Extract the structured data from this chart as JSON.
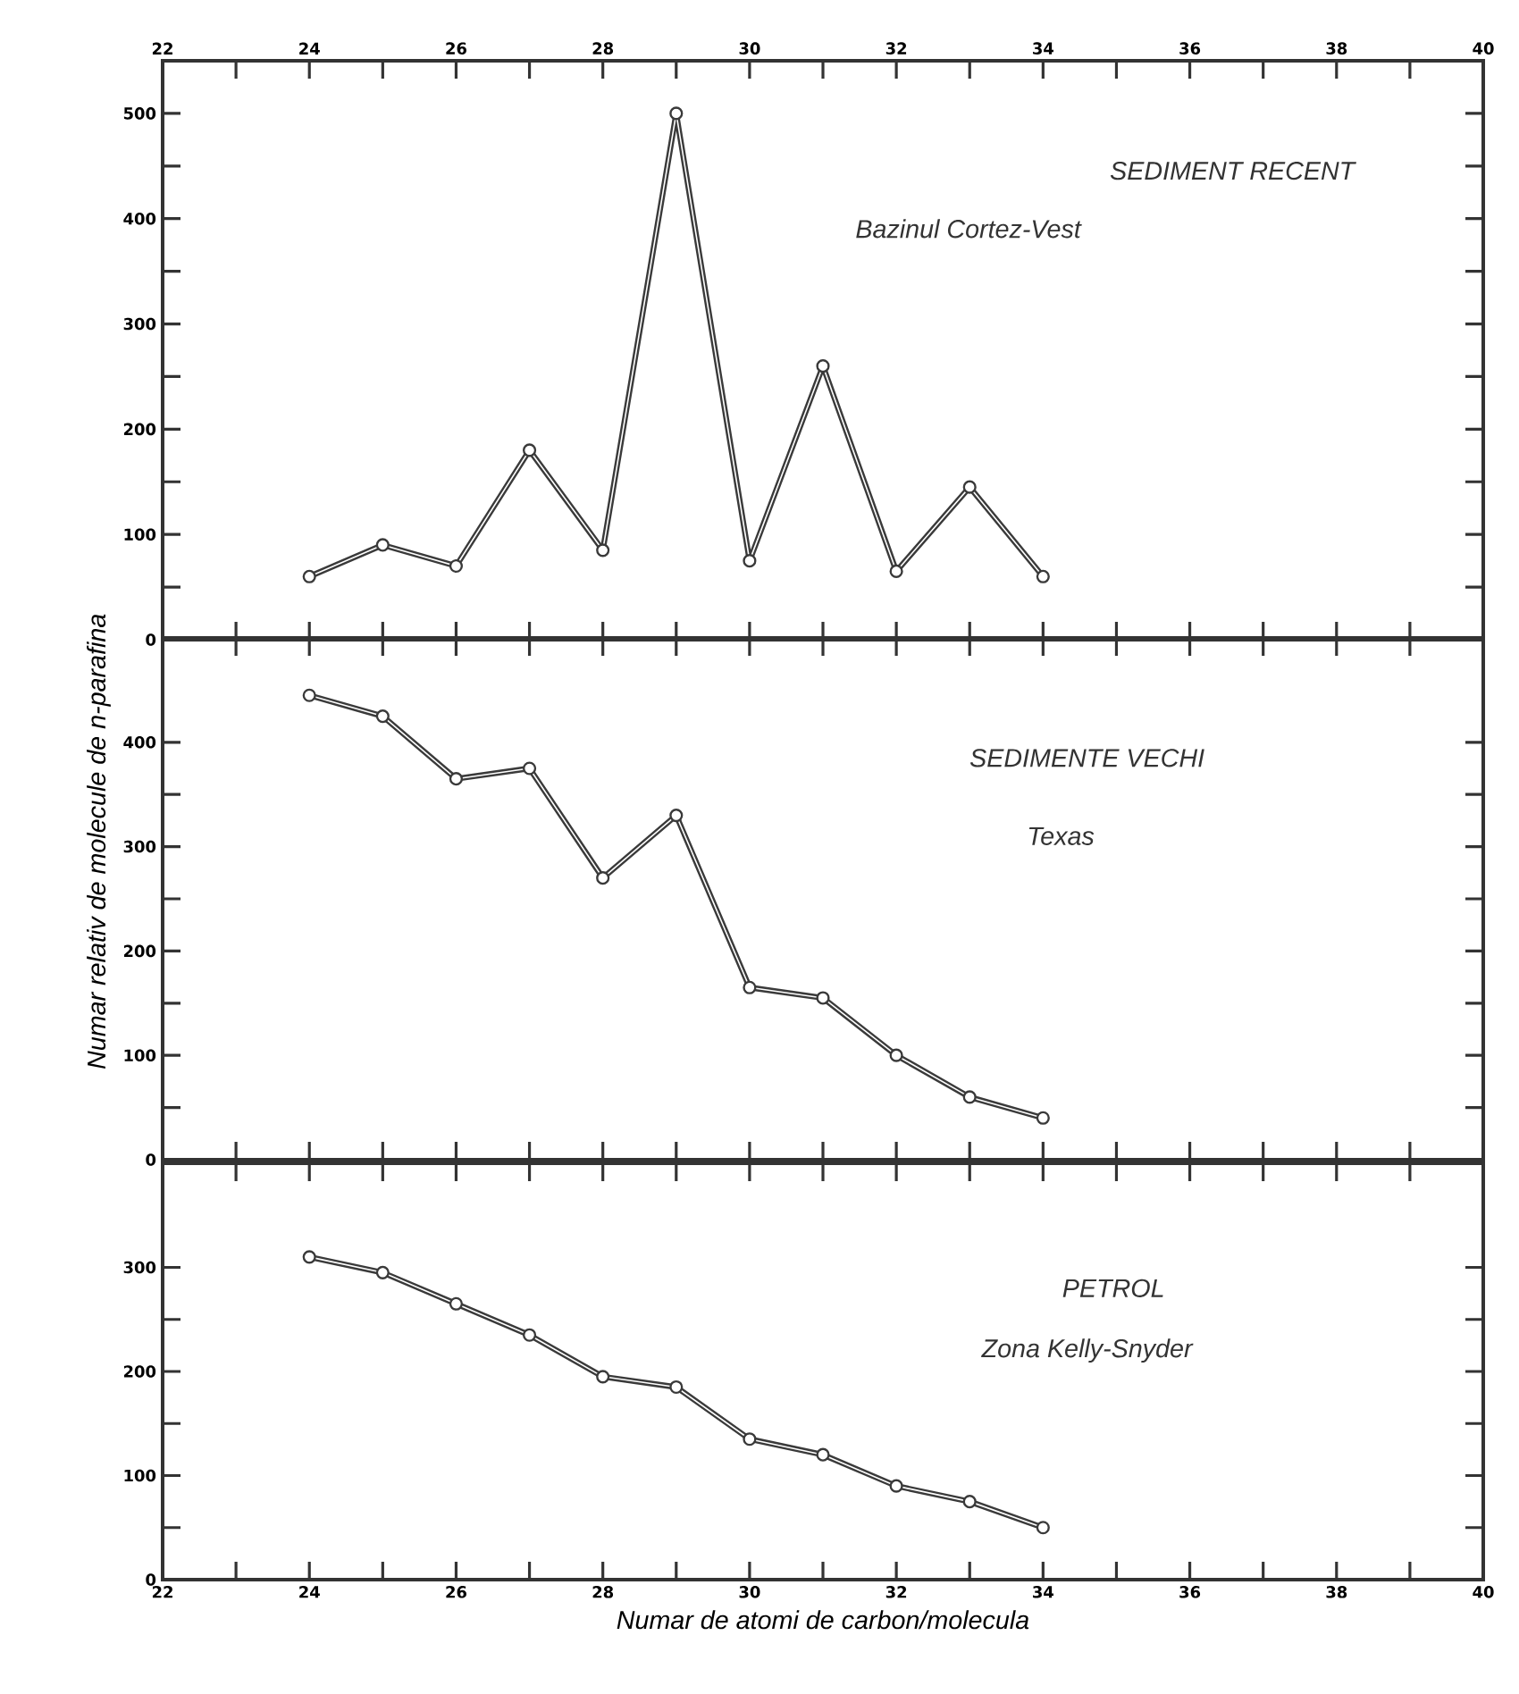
{
  "chart_data": [
    {
      "type": "line",
      "annotations": [
        "SEDIMENT RECENT",
        "Bazinul Cortez-Vest"
      ],
      "x": [
        24,
        25,
        26,
        27,
        28,
        29,
        30,
        31,
        32,
        33,
        34
      ],
      "series": [
        {
          "color": "#3a3a3a",
          "values": [
            60,
            90,
            70,
            180,
            85,
            500,
            75,
            260,
            65,
            145,
            60
          ]
        }
      ],
      "xlim": [
        22,
        40
      ],
      "xticks": [
        22,
        24,
        26,
        28,
        30,
        32,
        34,
        36,
        38,
        40
      ],
      "x2lim": [
        22,
        40
      ],
      "x2ticks": [
        22,
        24,
        26,
        28,
        30,
        32,
        34,
        36,
        38,
        40
      ],
      "ylim": [
        0,
        550
      ],
      "yticks": [
        0,
        100,
        200,
        300,
        400,
        500
      ],
      "tick_labels": "y",
      "marker": "circle",
      "line_style": "solid"
    },
    {
      "type": "line",
      "annotations": [
        "SEDIMENTE VECHI",
        "Texas"
      ],
      "ylabel": "Numar relativ de molecule de n-parafina",
      "x": [
        24,
        25,
        26,
        27,
        28,
        29,
        30,
        31,
        32,
        33,
        34
      ],
      "series": [
        {
          "color": "#3a3a3a",
          "values": [
            445,
            425,
            365,
            375,
            270,
            330,
            165,
            155,
            100,
            60,
            40
          ]
        }
      ],
      "xlim": [
        22,
        40
      ],
      "xticks": [
        22,
        24,
        26,
        28,
        30,
        32,
        34,
        36,
        38,
        40
      ],
      "ylim": [
        0,
        500
      ],
      "yticks": [
        0,
        100,
        200,
        300,
        400
      ],
      "tick_labels": "y",
      "marker": "circle",
      "line_style": "solid"
    },
    {
      "type": "line",
      "annotations": [
        "PETROL",
        "Zona Kelly-Snyder"
      ],
      "xlabel": "Numar de atomi de carbon/molecula",
      "x": [
        24,
        25,
        26,
        27,
        28,
        29,
        30,
        31,
        32,
        33,
        34
      ],
      "series": [
        {
          "color": "#3a3a3a",
          "values": [
            310,
            295,
            265,
            235,
            195,
            185,
            135,
            120,
            90,
            75,
            50
          ]
        }
      ],
      "xlim": [
        22,
        40
      ],
      "xticks": [
        22,
        24,
        26,
        28,
        30,
        32,
        34,
        36,
        38,
        40
      ],
      "ylim": [
        0,
        400
      ],
      "yticks": [
        0,
        100,
        200,
        300
      ],
      "marker": "circle",
      "line_style": "solid"
    }
  ]
}
